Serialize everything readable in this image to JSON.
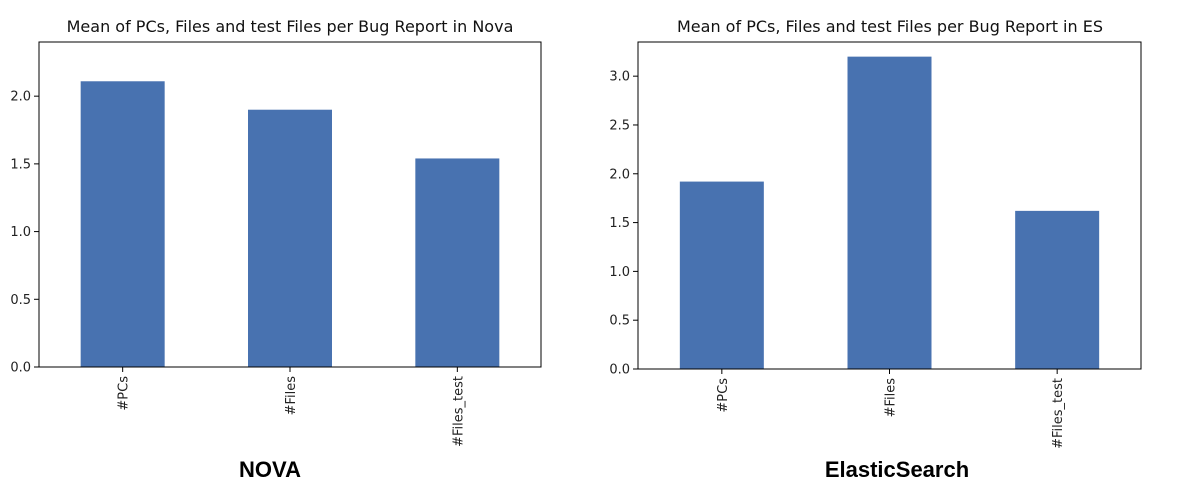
{
  "chart_data": [
    {
      "type": "bar",
      "title": "Mean of PCs, Files and test Files per Bug Report in Nova",
      "categories": [
        "#PCs",
        "#Files",
        "#Files_test"
      ],
      "values": [
        2.11,
        1.9,
        1.54
      ],
      "ylim": [
        0,
        2.4
      ],
      "yticks": [
        "0.0",
        "0.5",
        "1.0",
        "1.5",
        "2.0"
      ],
      "color": "#4872b0",
      "caption": "NOVA",
      "grid": false
    },
    {
      "type": "bar",
      "title": "Mean of PCs, Files and test Files per Bug Report in ES",
      "categories": [
        "#PCs",
        "#Files",
        "#Files_test"
      ],
      "values": [
        1.92,
        3.2,
        1.62
      ],
      "ylim": [
        0,
        3.35
      ],
      "yticks": [
        "0.0",
        "0.5",
        "1.0",
        "1.5",
        "2.0",
        "2.5",
        "3.0"
      ],
      "color": "#4872b0",
      "caption": "ElasticSearch",
      "grid": false
    }
  ]
}
